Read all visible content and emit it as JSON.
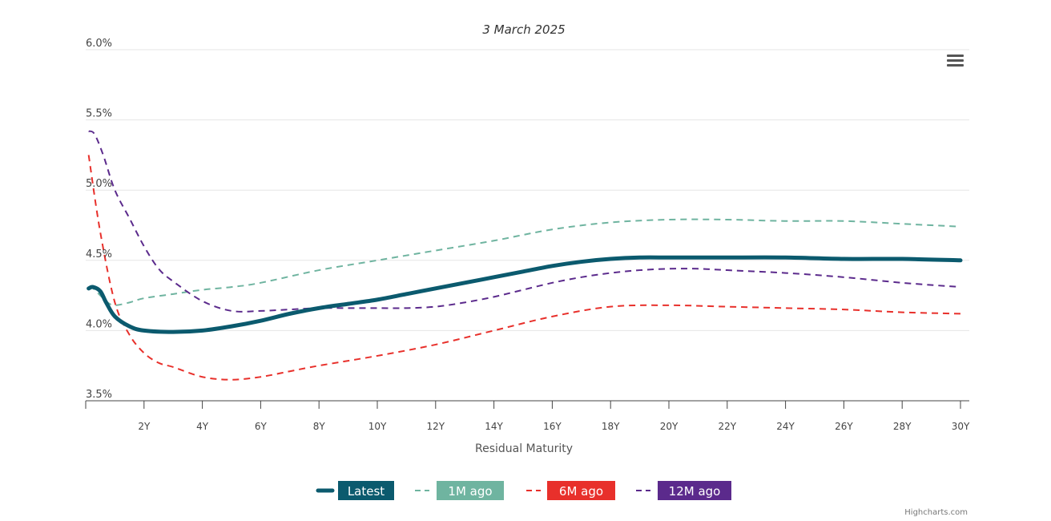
{
  "chart_data": {
    "type": "line",
    "title": "3 March 2025",
    "xlabel": "Residual Maturity",
    "ylabel": "",
    "x_unit": "years",
    "xlim": [
      0,
      30
    ],
    "ylim": [
      3.5,
      6.0
    ],
    "x_ticks": [
      2,
      4,
      6,
      8,
      10,
      12,
      14,
      16,
      18,
      20,
      22,
      24,
      26,
      28,
      30
    ],
    "x_tick_labels": [
      "2Y",
      "4Y",
      "6Y",
      "8Y",
      "10Y",
      "12Y",
      "14Y",
      "16Y",
      "18Y",
      "20Y",
      "22Y",
      "24Y",
      "26Y",
      "28Y",
      "30Y"
    ],
    "y_ticks": [
      3.5,
      4.0,
      4.5,
      5.0,
      5.5,
      6.0
    ],
    "y_tick_labels": [
      "3.5%",
      "4.0%",
      "4.5%",
      "5.0%",
      "5.5%",
      "6.0%"
    ],
    "grid": true,
    "legend_position": "bottom-center",
    "series": [
      {
        "name": "Latest",
        "color": "#0b5a6e",
        "style": "solid",
        "x": [
          0.1,
          0.25,
          0.5,
          0.7,
          1,
          1.5,
          2,
          3,
          4,
          5,
          6,
          7,
          8,
          9,
          10,
          11,
          12,
          13,
          14,
          15,
          16,
          17,
          18,
          19,
          20,
          21,
          22,
          24,
          26,
          28,
          30
        ],
        "values": [
          4.3,
          4.31,
          4.28,
          4.2,
          4.1,
          4.03,
          4.0,
          3.99,
          4.0,
          4.03,
          4.07,
          4.12,
          4.16,
          4.19,
          4.22,
          4.26,
          4.3,
          4.34,
          4.38,
          4.42,
          4.46,
          4.49,
          4.51,
          4.52,
          4.52,
          4.52,
          4.52,
          4.52,
          4.51,
          4.51,
          4.5
        ]
      },
      {
        "name": "1M ago",
        "color": "#6fb4a0",
        "style": "dash",
        "x": [
          0.1,
          0.25,
          0.5,
          0.75,
          1,
          1.5,
          2,
          3,
          4,
          5,
          6,
          8,
          10,
          12,
          14,
          16,
          18,
          20,
          22,
          24,
          26,
          28,
          30
        ],
        "values": [
          4.3,
          4.3,
          4.25,
          4.2,
          4.18,
          4.2,
          4.23,
          4.26,
          4.29,
          4.31,
          4.34,
          4.43,
          4.5,
          4.57,
          4.64,
          4.72,
          4.77,
          4.79,
          4.79,
          4.78,
          4.78,
          4.76,
          4.74
        ]
      },
      {
        "name": "6M ago",
        "color": "#e8302b",
        "style": "dash",
        "x": [
          0.1,
          0.5,
          1,
          1.5,
          2,
          2.5,
          3,
          4,
          5,
          6,
          7,
          8,
          10,
          12,
          14,
          16,
          18,
          20,
          22,
          24,
          26,
          28,
          30
        ],
        "values": [
          5.25,
          4.7,
          4.2,
          3.97,
          3.84,
          3.77,
          3.74,
          3.67,
          3.65,
          3.67,
          3.71,
          3.75,
          3.82,
          3.9,
          4.0,
          4.1,
          4.17,
          4.18,
          4.17,
          4.16,
          4.15,
          4.13,
          4.12
        ]
      },
      {
        "name": "12M ago",
        "color": "#5b2a8c",
        "style": "dash",
        "x": [
          0.1,
          0.3,
          0.6,
          1,
          1.5,
          2,
          2.5,
          3,
          4,
          5,
          6,
          7,
          8,
          9,
          10,
          11,
          12,
          13,
          14,
          15,
          16,
          17,
          18,
          19,
          20,
          21,
          22,
          24,
          26,
          28,
          30
        ],
        "values": [
          5.42,
          5.4,
          5.25,
          5.0,
          4.8,
          4.6,
          4.44,
          4.35,
          4.21,
          4.14,
          4.14,
          4.15,
          4.16,
          4.16,
          4.16,
          4.16,
          4.17,
          4.2,
          4.24,
          4.29,
          4.34,
          4.38,
          4.41,
          4.43,
          4.44,
          4.44,
          4.43,
          4.41,
          4.38,
          4.34,
          4.31
        ]
      }
    ]
  },
  "credits": "Highcharts.com",
  "menu_icon": "hamburger-menu-icon"
}
